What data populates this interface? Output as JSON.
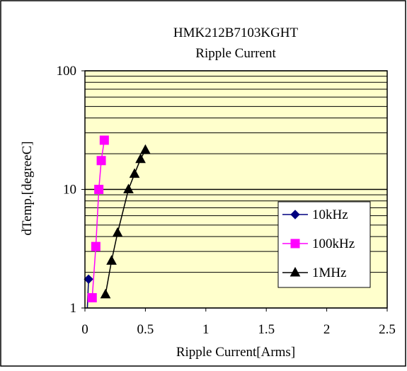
{
  "chart_data": {
    "type": "line",
    "title": "HMK212B7103KGHT",
    "subtitle": "Ripple Current",
    "xlabel": "Ripple Current[Arms]",
    "ylabel": "dTemp.[degreeC]",
    "x_scale": "linear",
    "y_scale": "log",
    "xlim": [
      0,
      2.5
    ],
    "ylim": [
      1,
      100
    ],
    "x_ticks": [
      "0",
      "0.5",
      "1",
      "1.5",
      "2",
      "2.5"
    ],
    "y_ticks": [
      "1",
      "10",
      "100"
    ],
    "grid": "horizontal log gridlines",
    "legend_position": "right",
    "series": [
      {
        "name": "10kHz",
        "color": "#000080",
        "marker": "diamond",
        "points": [
          [
            0.02,
            1.0
          ],
          [
            0.03,
            1.75
          ]
        ]
      },
      {
        "name": "100kHz",
        "color": "#ff00ff",
        "marker": "square",
        "points": [
          [
            0.06,
            1.22
          ],
          [
            0.09,
            3.3
          ],
          [
            0.115,
            10.0
          ],
          [
            0.135,
            17.5
          ],
          [
            0.16,
            26.0
          ]
        ]
      },
      {
        "name": "1MHz",
        "color": "#000000",
        "marker": "triangle",
        "points": [
          [
            0.17,
            1.3
          ],
          [
            0.22,
            2.5
          ],
          [
            0.27,
            4.3
          ],
          [
            0.36,
            10.0
          ],
          [
            0.41,
            13.5
          ],
          [
            0.46,
            18.0
          ],
          [
            0.5,
            21.5
          ]
        ]
      }
    ]
  },
  "colors": {
    "plot_background": "#ffffcc",
    "frame": "#000000"
  }
}
